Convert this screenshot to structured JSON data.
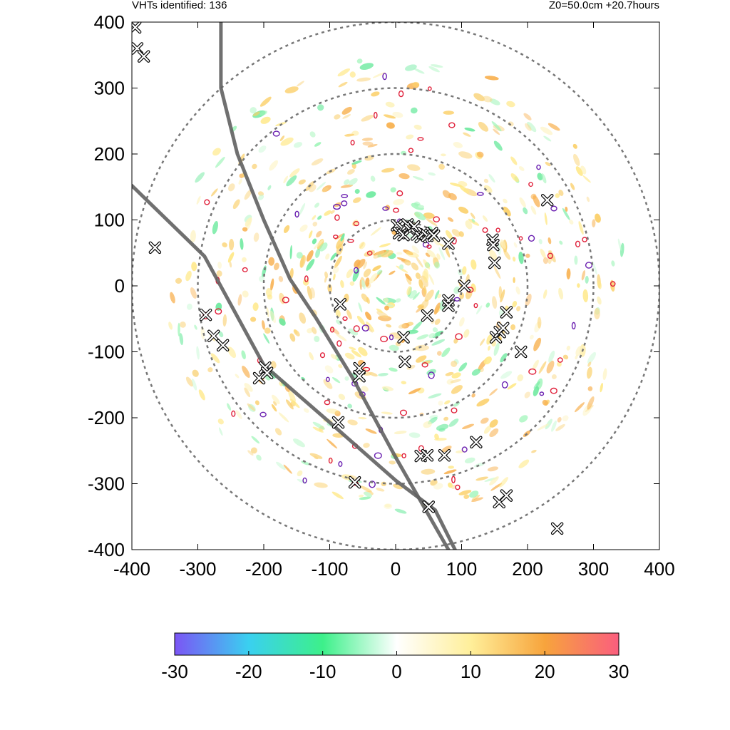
{
  "header": {
    "left_text": "VHTs identified: 136",
    "right_text": "Z0=50.0cm  +20.7hours"
  },
  "chart_data": {
    "type": "scatter",
    "title": "",
    "xlabel": "",
    "ylabel": "",
    "xlim": [
      -400,
      400
    ],
    "ylim": [
      -400,
      400
    ],
    "x_ticks": [
      -400,
      -300,
      -200,
      -100,
      0,
      100,
      200,
      300,
      400
    ],
    "y_ticks": [
      -400,
      -300,
      -200,
      -100,
      0,
      100,
      200,
      300,
      400
    ],
    "x_tick_labels": [
      "-400",
      "-300",
      "-200",
      "-100",
      "0",
      "100",
      "200",
      "300",
      "400"
    ],
    "y_tick_labels": [
      "-400",
      "-300",
      "-200",
      "-100",
      "0",
      "100",
      "200",
      "300",
      "400"
    ],
    "grid": false,
    "range_rings_radii": [
      100,
      200,
      300,
      400
    ],
    "colorbar": {
      "range": [
        -30,
        30
      ],
      "ticks": [
        -30,
        -20,
        -10,
        0,
        10,
        20,
        30
      ],
      "tick_labels": [
        "-30",
        "-20",
        "-10",
        "0",
        "10",
        "20",
        "30"
      ],
      "colors": [
        "#7b55f5",
        "#3ad0f0",
        "#3df08a",
        "#ffffff",
        "#ffef9a",
        "#f7a43c",
        "#fa5e7e"
      ]
    },
    "track_lines": [
      {
        "color": "#606060",
        "points": [
          [
            -400,
            152
          ],
          [
            -290,
            45
          ],
          [
            -200,
            -120
          ],
          [
            -100,
            -207
          ],
          [
            0,
            -295
          ],
          [
            60,
            -340
          ],
          [
            90,
            -400
          ]
        ]
      },
      {
        "color": "#606060",
        "points": [
          [
            -265,
            400
          ],
          [
            -265,
            300
          ],
          [
            -240,
            200
          ],
          [
            -200,
            100
          ],
          [
            -160,
            10
          ],
          [
            -120,
            -50
          ],
          [
            -65,
            -140
          ],
          [
            0,
            -260
          ],
          [
            40,
            -330
          ],
          [
            80,
            -400
          ]
        ]
      }
    ],
    "vht_markers": [
      {
        "x": -395,
        "y": 392
      },
      {
        "x": -392,
        "y": 360
      },
      {
        "x": -382,
        "y": 348
      },
      {
        "x": -365,
        "y": 58
      },
      {
        "x": -288,
        "y": -44
      },
      {
        "x": -276,
        "y": -76
      },
      {
        "x": -262,
        "y": -90
      },
      {
        "x": -207,
        "y": -140
      },
      {
        "x": -198,
        "y": -124
      },
      {
        "x": -195,
        "y": -132
      },
      {
        "x": -87,
        "y": -207
      },
      {
        "x": -84,
        "y": -28
      },
      {
        "x": -62,
        "y": -298
      },
      {
        "x": -55,
        "y": -125
      },
      {
        "x": -55,
        "y": -137
      },
      {
        "x": 2,
        "y": 92
      },
      {
        "x": 5,
        "y": 80
      },
      {
        "x": 10,
        "y": 88
      },
      {
        "x": 12,
        "y": 77
      },
      {
        "x": 18,
        "y": 93
      },
      {
        "x": 22,
        "y": 85
      },
      {
        "x": 28,
        "y": 90
      },
      {
        "x": 32,
        "y": 78
      },
      {
        "x": 38,
        "y": 74
      },
      {
        "x": 42,
        "y": 80
      },
      {
        "x": 48,
        "y": 76
      },
      {
        "x": 55,
        "y": 80
      },
      {
        "x": 58,
        "y": 76
      },
      {
        "x": 12,
        "y": -78
      },
      {
        "x": 14,
        "y": -115
      },
      {
        "x": 48,
        "y": -45
      },
      {
        "x": 38,
        "y": -258
      },
      {
        "x": 48,
        "y": -257
      },
      {
        "x": 74,
        "y": -257
      },
      {
        "x": 50,
        "y": -335
      },
      {
        "x": 80,
        "y": 64
      },
      {
        "x": 80,
        "y": -22
      },
      {
        "x": 80,
        "y": -30
      },
      {
        "x": 104,
        "y": 0
      },
      {
        "x": 122,
        "y": -237
      },
      {
        "x": 147,
        "y": 70
      },
      {
        "x": 148,
        "y": 62
      },
      {
        "x": 150,
        "y": 35
      },
      {
        "x": 152,
        "y": -78
      },
      {
        "x": 158,
        "y": -70
      },
      {
        "x": 163,
        "y": -64
      },
      {
        "x": 168,
        "y": -40
      },
      {
        "x": 157,
        "y": -328
      },
      {
        "x": 168,
        "y": -318
      },
      {
        "x": 190,
        "y": -100
      },
      {
        "x": 230,
        "y": 130
      },
      {
        "x": 245,
        "y": -368
      }
    ]
  }
}
